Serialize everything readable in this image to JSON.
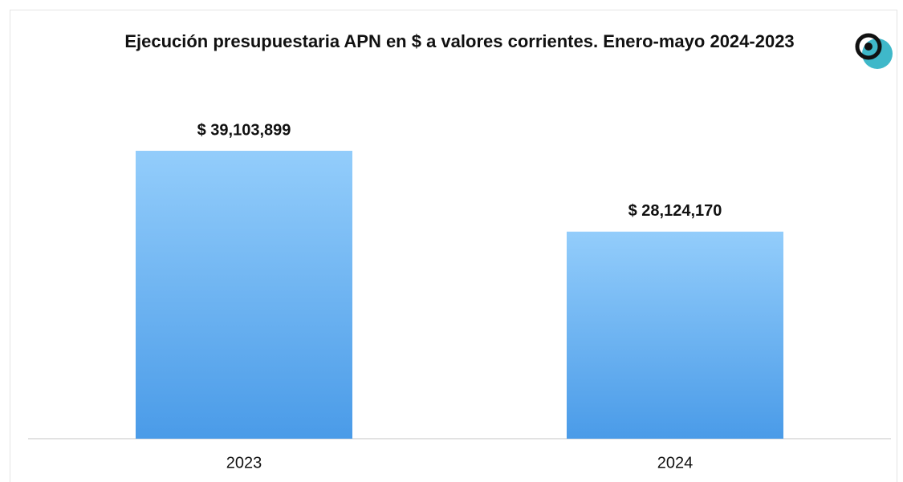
{
  "chart_data": {
    "type": "bar",
    "title": "Ejecución presupuestaria APN en $ a valores corrientes. Enero-mayo 2024-2023",
    "categories": [
      "2023",
      "2024"
    ],
    "values": [
      39103899,
      28124170
    ],
    "value_labels": [
      "$ 39,103,899",
      "$ 28,124,170"
    ],
    "color": "#4a9be8"
  }
}
